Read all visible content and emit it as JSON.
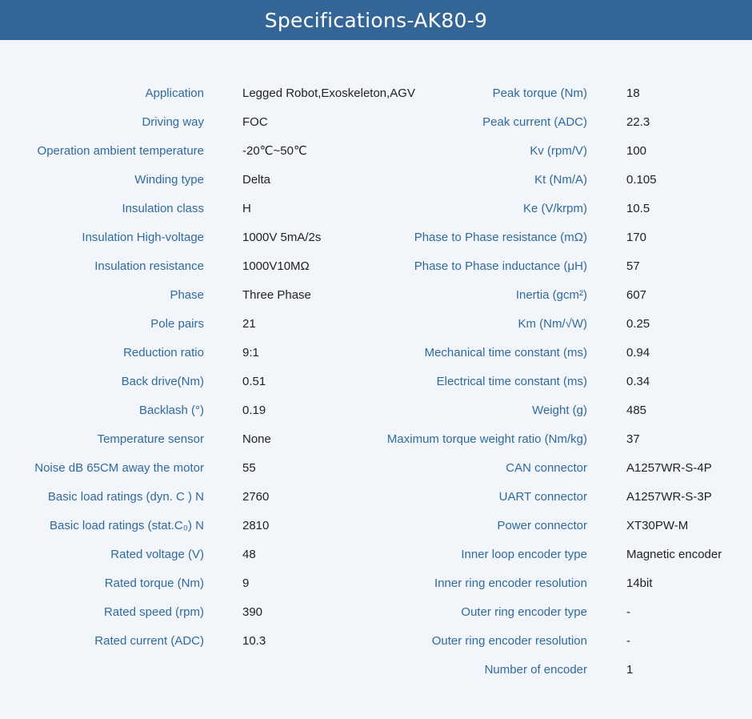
{
  "title": "Specifications-AK80-9",
  "left": [
    {
      "label": "Application",
      "value": "Legged Robot,Exoskeleton,AGV"
    },
    {
      "label": "Driving way",
      "value": "FOC"
    },
    {
      "label": "Operation ambient temperature",
      "value": "-20℃~50℃"
    },
    {
      "label": "Winding type",
      "value": "Delta"
    },
    {
      "label": "Insulation class",
      "value": "H"
    },
    {
      "label": "Insulation High-voltage",
      "value": "1000V 5mA/2s"
    },
    {
      "label": "Insulation resistance",
      "value": "1000V10MΩ"
    },
    {
      "label": "Phase",
      "value": "Three Phase"
    },
    {
      "label": "Pole pairs",
      "value": "21"
    },
    {
      "label": "Reduction ratio",
      "value": "9:1"
    },
    {
      "label": "Back drive(Nm)",
      "value": "0.51"
    },
    {
      "label": "Backlash (°)",
      "value": "0.19"
    },
    {
      "label": "Temperature sensor",
      "value": "None"
    },
    {
      "label": "Noise dB 65CM away the motor",
      "value": "55"
    },
    {
      "label": "Basic load ratings (dyn. C ) N",
      "value": "2760"
    },
    {
      "label": "Basic load ratings (stat.C₀) N",
      "value": "2810"
    },
    {
      "label": "Rated voltage (V)",
      "value": "48"
    },
    {
      "label": "Rated torque (Nm)",
      "value": "9"
    },
    {
      "label": "Rated speed (rpm)",
      "value": "390"
    },
    {
      "label": "Rated current (ADC)",
      "value": "10.3"
    }
  ],
  "right": [
    {
      "label": "Peak torque (Nm)",
      "value": "18"
    },
    {
      "label": "Peak current (ADC)",
      "value": "22.3"
    },
    {
      "label": "Kv (rpm/V)",
      "value": "100"
    },
    {
      "label": "Kt (Nm/A)",
      "value": "0.105"
    },
    {
      "label": "Ke (V/krpm)",
      "value": "10.5"
    },
    {
      "label": "Phase to Phase resistance (mΩ)",
      "value": "170"
    },
    {
      "label": "Phase to Phase inductance (μH)",
      "value": "57"
    },
    {
      "label": "Inertia (gcm²)",
      "value": "607"
    },
    {
      "label": "Km (Nm/√W)",
      "value": "0.25"
    },
    {
      "label": "Mechanical time constant (ms)",
      "value": "0.94"
    },
    {
      "label": "Electrical time constant (ms)",
      "value": "0.34"
    },
    {
      "label": "Weight (g)",
      "value": "485"
    },
    {
      "label": "Maximum torque weight ratio (Nm/kg)",
      "value": "37"
    },
    {
      "label": "CAN connector",
      "value": "A1257WR-S-4P"
    },
    {
      "label": "UART connector",
      "value": "A1257WR-S-3P"
    },
    {
      "label": "Power connector",
      "value": "XT30PW-M"
    },
    {
      "label": "Inner loop encoder type",
      "value": "Magnetic encoder"
    },
    {
      "label": "Inner ring encoder resolution",
      "value": "14bit"
    },
    {
      "label": "Outer ring encoder type",
      "value": "-"
    },
    {
      "label": "Outer ring encoder resolution",
      "value": "-"
    },
    {
      "label": "Number of encoder",
      "value": "1"
    }
  ]
}
